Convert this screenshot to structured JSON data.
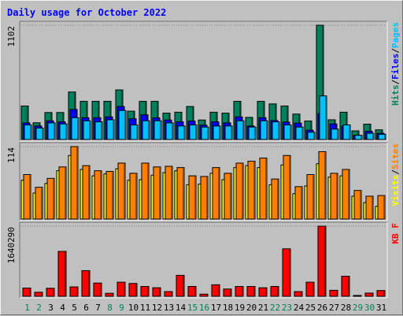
{
  "chart_data": {
    "type": "bar",
    "title": "Daily usage for October 2022",
    "colors": {
      "background": "#c0c0c0",
      "hits": "#00805c",
      "files": "#0000ff",
      "pages": "#00c0ff",
      "visits": "#ffff00",
      "sites": "#ff8000",
      "kbytes": "#ff0000",
      "title": "#0000ff",
      "day_weekday": "#000000",
      "day_weekend": "#00805c"
    },
    "days": [
      "1",
      "2",
      "3",
      "4",
      "5",
      "6",
      "7",
      "8",
      "9",
      "10",
      "11",
      "12",
      "13",
      "14",
      "15",
      "16",
      "17",
      "18",
      "19",
      "20",
      "21",
      "22",
      "23",
      "24",
      "25",
      "26",
      "27",
      "28",
      "29",
      "30",
      "31"
    ],
    "weekend_days": [
      "1",
      "2",
      "8",
      "9",
      "15",
      "16",
      "22",
      "23",
      "29",
      "30"
    ],
    "panels": [
      {
        "id": "hits-files-pages",
        "max_label": "1102",
        "ymax": 1102,
        "legend": [
          {
            "text": "Hits",
            "color_key": "hits"
          },
          {
            "text": "/",
            "color_key": "day_weekday"
          },
          {
            "text": "Files",
            "color_key": "files"
          },
          {
            "text": "/",
            "color_key": "day_weekday"
          },
          {
            "text": "Pages",
            "color_key": "pages"
          }
        ],
        "series": [
          {
            "name": "Hits",
            "color_key": "hits",
            "values": [
              323,
              161,
              260,
              260,
              458,
              368,
              368,
              368,
              478,
              273,
              368,
              368,
              254,
              263,
              318,
              188,
              263,
              254,
              368,
              213,
              368,
              343,
              323,
              245,
              178,
              1102,
              190,
              263,
              83,
              148,
              93
            ]
          },
          {
            "name": "Files",
            "color_key": "files",
            "values": [
              160,
              130,
              180,
              170,
              290,
              210,
              210,
              218,
              318,
              200,
              238,
              208,
              188,
              170,
              178,
              138,
              170,
              160,
              218,
              130,
              210,
              183,
              168,
              158,
              90,
              250,
              150,
              128,
              40,
              80,
              60
            ]
          },
          {
            "name": "Pages",
            "color_key": "pages",
            "values": [
              140,
              110,
              160,
              150,
              210,
              180,
              170,
              190,
              280,
              140,
              180,
              180,
              160,
              130,
              140,
              120,
              130,
              130,
              180,
              120,
              180,
              170,
              140,
              120,
              70,
              420,
              100,
              140,
              40,
              60,
              50
            ]
          }
        ]
      },
      {
        "id": "visits-sites",
        "max_label": "114",
        "ymax": 114,
        "legend": [
          {
            "text": "Visits",
            "color_key": "visits"
          },
          {
            "text": "/",
            "color_key": "day_weekday"
          },
          {
            "text": "Sites",
            "color_key": "sites"
          }
        ],
        "series": [
          {
            "name": "Visits",
            "color_key": "visits",
            "values": [
              61,
              41,
              56,
              76,
              100,
              78,
              68,
              71,
              79,
              61,
              62,
              69,
              73,
              76,
              54,
              55,
              72,
              62,
              81,
              84,
              81,
              54,
              85,
              40,
              52,
              87,
              66,
              68,
              36,
              26,
              20
            ]
          },
          {
            "name": "Sites",
            "color_key": "sites",
            "values": [
              70,
              50,
              64,
              82,
              114,
              84,
              76,
              75,
              88,
              72,
              88,
              82,
              83,
              81,
              68,
              67,
              81,
              72,
              88,
              91,
              96,
              63,
              100,
              51,
              70,
              106,
              72,
              78,
              45,
              36,
              37
            ]
          }
        ]
      },
      {
        "id": "kbytes",
        "max_label": "1640290",
        "ymax": 1640290,
        "legend": [
          {
            "text": "KB F",
            "color_key": "kbytes"
          }
        ],
        "series": [
          {
            "name": "KB F",
            "color_key": "kbytes",
            "values": [
              193000,
              95000,
              188000,
              1050000,
              220000,
              600000,
              310000,
              70000,
              330000,
              300000,
              230000,
              200000,
              110000,
              490000,
              230000,
              50000,
              270000,
              170000,
              230000,
              230000,
              200000,
              230000,
              1110000,
              110000,
              330000,
              1640290,
              140000,
              470000,
              20000,
              75000,
              135000
            ]
          }
        ]
      }
    ]
  }
}
